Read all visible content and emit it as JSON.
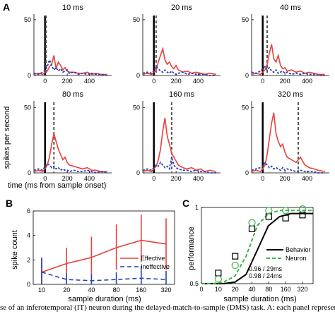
{
  "panel_letters": {
    "a": "A",
    "b": "B",
    "c": "C"
  },
  "panel_a": {
    "ylabel": "spikes per second",
    "xlabel": "time (ms from sample onset)",
    "ytick_labels": [
      "0",
      "50"
    ],
    "xtick_labels": [
      "0",
      "200",
      "400"
    ],
    "subplot_titles": [
      "10 ms",
      "20 ms",
      "40 ms",
      "80 ms",
      "160 ms",
      "320 ms"
    ]
  },
  "chart_data": [
    {
      "type": "line",
      "title": "",
      "xlabel": "time (ms from sample onset)",
      "ylabel": "spikes per second",
      "xlim": [
        -100,
        600
      ],
      "ylim": [
        0,
        55
      ],
      "subplots": [
        {
          "title": "10 ms",
          "sample_offset_ms": 10,
          "x": [
            -100,
            -60,
            -20,
            0,
            20,
            40,
            60,
            80,
            100,
            120,
            140,
            160,
            180,
            200,
            220,
            260,
            300,
            340,
            380,
            420,
            460,
            500,
            560
          ],
          "series": [
            {
              "name": "Effective",
              "values": [
                1,
                2,
                1,
                3,
                4,
                8,
                10,
                18,
                6,
                12,
                9,
                5,
                7,
                4,
                3,
                3,
                2,
                2,
                3,
                1,
                2,
                1,
                1
              ]
            },
            {
              "name": "Ineffective",
              "values": [
                2,
                1,
                3,
                4,
                8,
                14,
                9,
                5,
                7,
                4,
                6,
                3,
                4,
                5,
                2,
                3,
                1,
                2,
                1,
                2,
                1,
                1,
                0
              ]
            }
          ]
        },
        {
          "title": "20 ms",
          "sample_offset_ms": 20,
          "x": [
            -100,
            -60,
            -20,
            0,
            20,
            40,
            60,
            80,
            100,
            120,
            140,
            160,
            180,
            200,
            220,
            260,
            300,
            340,
            380,
            420,
            460,
            500,
            560
          ],
          "series": [
            {
              "name": "Effective",
              "values": [
                1,
                2,
                1,
                3,
                5,
                12,
                18,
                24,
                14,
                10,
                12,
                8,
                6,
                9,
                5,
                3,
                4,
                2,
                3,
                2,
                1,
                2,
                1
              ]
            },
            {
              "name": "Ineffective",
              "values": [
                2,
                3,
                2,
                4,
                8,
                6,
                4,
                3,
                5,
                3,
                2,
                4,
                2,
                1,
                2,
                3,
                1,
                2,
                1,
                1,
                1,
                0,
                0
              ]
            }
          ]
        },
        {
          "title": "40 ms",
          "sample_offset_ms": 40,
          "x": [
            -100,
            -60,
            -20,
            0,
            20,
            40,
            60,
            80,
            100,
            120,
            140,
            160,
            180,
            200,
            220,
            260,
            300,
            340,
            380,
            420,
            460,
            500,
            560
          ],
          "series": [
            {
              "name": "Effective",
              "values": [
                1,
                2,
                1,
                3,
                5,
                10,
                20,
                28,
                15,
                12,
                18,
                9,
                6,
                7,
                4,
                5,
                3,
                4,
                2,
                3,
                2,
                1,
                1
              ]
            },
            {
              "name": "Ineffective",
              "values": [
                3,
                2,
                4,
                6,
                8,
                5,
                7,
                4,
                3,
                5,
                2,
                3,
                4,
                2,
                3,
                1,
                2,
                1,
                2,
                1,
                1,
                0,
                0
              ]
            }
          ]
        },
        {
          "title": "80 ms",
          "sample_offset_ms": 80,
          "x": [
            -100,
            -60,
            -20,
            0,
            20,
            40,
            60,
            80,
            100,
            120,
            140,
            160,
            180,
            200,
            220,
            260,
            300,
            340,
            380,
            420,
            460,
            500,
            560
          ],
          "series": [
            {
              "name": "Effective",
              "values": [
                1,
                2,
                1,
                3,
                6,
                12,
                22,
                30,
                24,
                18,
                14,
                10,
                12,
                8,
                6,
                5,
                4,
                3,
                4,
                2,
                2,
                1,
                1
              ]
            },
            {
              "name": "Ineffective",
              "values": [
                2,
                3,
                2,
                5,
                7,
                6,
                4,
                5,
                3,
                4,
                2,
                3,
                2,
                2,
                1,
                2,
                1,
                1,
                2,
                1,
                0,
                1,
                0
              ]
            }
          ]
        },
        {
          "title": "160 ms",
          "sample_offset_ms": 160,
          "x": [
            -100,
            -60,
            -20,
            0,
            20,
            40,
            60,
            80,
            100,
            120,
            140,
            160,
            180,
            200,
            220,
            260,
            300,
            340,
            380,
            420,
            460,
            500,
            560
          ],
          "series": [
            {
              "name": "Effective",
              "values": [
                1,
                2,
                1,
                3,
                5,
                10,
                18,
                32,
                42,
                28,
                22,
                15,
                12,
                9,
                6,
                4,
                3,
                4,
                2,
                3,
                1,
                2,
                1
              ]
            },
            {
              "name": "Ineffective",
              "values": [
                2,
                3,
                2,
                4,
                6,
                5,
                8,
                6,
                4,
                5,
                3,
                12,
                6,
                4,
                3,
                2,
                2,
                1,
                2,
                1,
                1,
                0,
                0
              ]
            }
          ]
        },
        {
          "title": "320 ms",
          "sample_offset_ms": 320,
          "x": [
            -100,
            -60,
            -20,
            0,
            20,
            40,
            60,
            80,
            100,
            120,
            140,
            160,
            180,
            200,
            220,
            260,
            300,
            340,
            380,
            420,
            460,
            500,
            560
          ],
          "series": [
            {
              "name": "Effective",
              "values": [
                1,
                2,
                1,
                3,
                6,
                14,
                26,
                38,
                46,
                30,
                24,
                20,
                22,
                16,
                12,
                10,
                8,
                12,
                6,
                4,
                3,
                2,
                1
              ]
            },
            {
              "name": "Ineffective",
              "values": [
                2,
                3,
                4,
                5,
                8,
                6,
                4,
                5,
                3,
                4,
                3,
                2,
                4,
                2,
                3,
                2,
                1,
                2,
                1,
                1,
                1,
                0,
                0
              ]
            }
          ]
        }
      ]
    },
    {
      "type": "line",
      "title": "",
      "xlabel": "sample duration (ms)",
      "ylabel": "spike count",
      "categories": [
        "10",
        "20",
        "40",
        "80",
        "160",
        "320"
      ],
      "ylim": [
        0,
        6
      ],
      "ytick_labels": [
        "0",
        "2",
        "4",
        "6"
      ],
      "legend": "center-right",
      "series": [
        {
          "name": "Effective",
          "values": [
            1.0,
            1.7,
            2.2,
            3.0,
            3.6,
            3.3
          ],
          "err_low": [
            0.0,
            0.4,
            0.7,
            1.2,
            1.8,
            1.2
          ],
          "err_high": [
            2.1,
            3.0,
            3.9,
            4.9,
            5.7,
            5.4
          ]
        },
        {
          "name": "Ineffective",
          "values": [
            1.0,
            0.4,
            0.3,
            0.4,
            0.5,
            0.4
          ],
          "err_low": [
            0.0,
            0.0,
            0.0,
            0.0,
            0.0,
            0.0
          ],
          "err_high": [
            2.2,
            0.9,
            0.8,
            1.0,
            1.5,
            1.1
          ]
        }
      ]
    },
    {
      "type": "scatter",
      "title": "",
      "xlabel": "sample duration (ms)",
      "ylabel": "performance",
      "categories": [
        "0",
        "10",
        "20",
        "40",
        "80",
        "160",
        "320"
      ],
      "ylim": [
        0.5,
        1.0
      ],
      "ytick_labels": [
        "0.5",
        "1"
      ],
      "legend": "lower-right",
      "series": [
        {
          "name": "Behavior",
          "points": [
            0.57,
            0.68,
            0.86,
            0.94,
            0.93,
            0.95
          ],
          "fit_label": "0.96 / 29ms"
        },
        {
          "name": "Neuron",
          "points": [
            0.53,
            0.62,
            0.9,
            0.98,
            0.98,
            0.99
          ],
          "fit_label": "0.98 / 24ms"
        }
      ],
      "fit_curves": {
        "Behavior": [
          0.5,
          0.5,
          0.5,
          0.51,
          0.56,
          0.72,
          0.88,
          0.94,
          0.96,
          0.96,
          0.96
        ],
        "Neuron": [
          0.5,
          0.5,
          0.51,
          0.55,
          0.68,
          0.88,
          0.96,
          0.98,
          0.98,
          0.98,
          0.98
        ]
      }
    }
  ],
  "panel_b": {
    "ylabel": "spike count",
    "xlabel": "sample duration (ms)",
    "legend_effective": "Effective",
    "legend_ineffective": "Ineffective"
  },
  "panel_c": {
    "ylabel": "performance",
    "xlabel": "sample duration (ms)",
    "legend_behavior": "Behavior",
    "legend_neuron": "Neuron",
    "fit_behavior": "0.96 / 29ms",
    "fit_neuron": "0.98 / 24ms"
  },
  "colors": {
    "effective": "#e8413a",
    "ineffective": "#2b3fb3",
    "behavior": "#000000",
    "neuron": "#3db04a"
  },
  "caption": "se of an inferotemporal (IT) neuron during the delayed-match-to-sample (DMS) task. A: each panel represents the average f"
}
